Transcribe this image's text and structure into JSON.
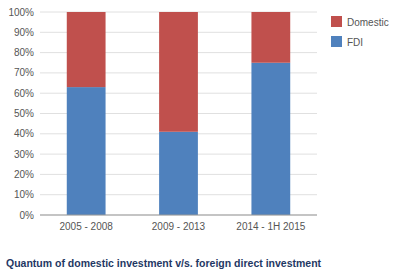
{
  "chart_data": {
    "type": "bar",
    "stacked": true,
    "title": "Quantum of domestic investment v/s. foreign direct investment",
    "categories": [
      "2005 - 2008",
      "2009 - 2013",
      "2014 - 1H 2015"
    ],
    "series": [
      {
        "name": "FDI",
        "color": "#4F81BD",
        "values": [
          63,
          41,
          75
        ]
      },
      {
        "name": "Domestic",
        "color": "#C0504D",
        "values": [
          37,
          59,
          25
        ]
      }
    ],
    "ylim": [
      0,
      100
    ],
    "yticks": [
      {
        "value": 0,
        "label": "0%"
      },
      {
        "value": 10,
        "label": "10%"
      },
      {
        "value": 20,
        "label": "20%"
      },
      {
        "value": 30,
        "label": "30%"
      },
      {
        "value": 40,
        "label": "40%"
      },
      {
        "value": 50,
        "label": "50%"
      },
      {
        "value": 60,
        "label": "60%"
      },
      {
        "value": 70,
        "label": "70%"
      },
      {
        "value": 80,
        "label": "80%"
      },
      {
        "value": 90,
        "label": "90%"
      },
      {
        "value": 100,
        "label": "100%"
      }
    ],
    "grid": true,
    "legend": "right"
  }
}
